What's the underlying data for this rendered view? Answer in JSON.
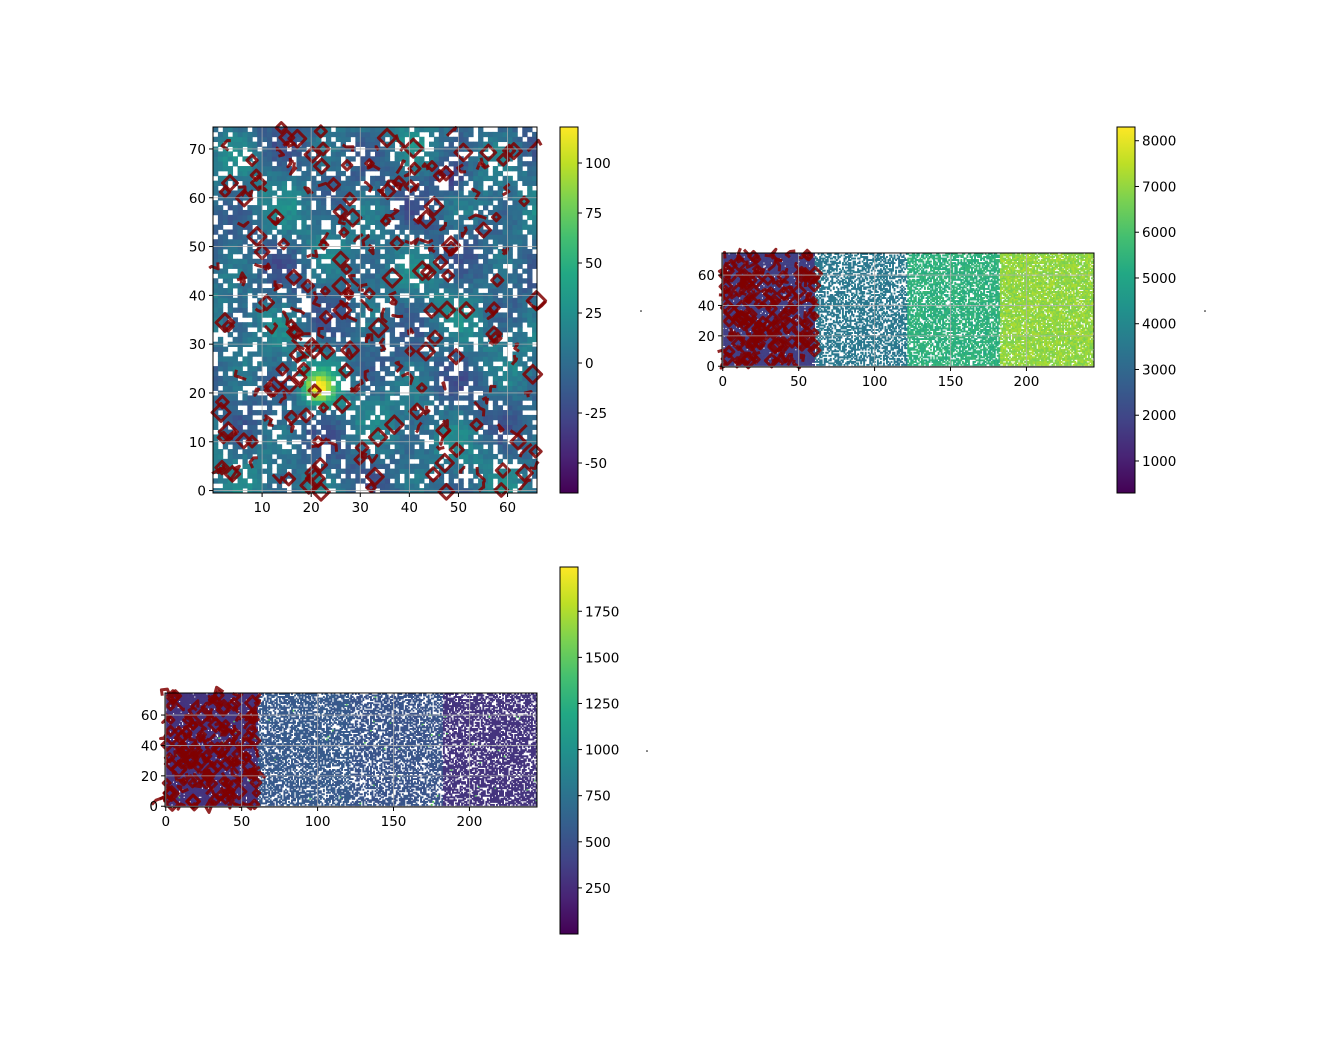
{
  "chart_data": [
    {
      "type": "heatmap",
      "title": "",
      "xlabel": "",
      "ylabel": "",
      "x_ticks": [
        10,
        20,
        30,
        40,
        50,
        60
      ],
      "y_ticks": [
        0,
        10,
        20,
        30,
        40,
        50,
        60,
        70
      ],
      "xlim": [
        0,
        66
      ],
      "ylim": [
        -0.5,
        74.5
      ],
      "grid": true,
      "colormap": "viridis",
      "colorbar": {
        "vmin": -65,
        "vmax": 118,
        "ticks": [
          -50,
          -25,
          0,
          25,
          50,
          75,
          100
        ]
      },
      "masked_fraction": 0.22,
      "contour_color": "#800000",
      "hotspot": {
        "x": 21,
        "y": 21,
        "value": 118
      },
      "lowspot": {
        "x": 48,
        "y": 64,
        "value": -40
      }
    },
    {
      "type": "heatmap",
      "title": "",
      "xlabel": "",
      "ylabel": "",
      "x_ticks": [
        0,
        50,
        100,
        150,
        200
      ],
      "y_ticks": [
        0,
        20,
        40,
        60
      ],
      "xlim": [
        -0.5,
        244.5
      ],
      "ylim": [
        -0.5,
        74.5
      ],
      "grid": true,
      "colormap": "viridis",
      "colorbar": {
        "vmin": 300,
        "vmax": 8300,
        "ticks": [
          1000,
          2000,
          3000,
          4000,
          5000,
          6000,
          7000,
          8000
        ]
      },
      "bands": [
        {
          "x_start": 0,
          "x_end": 61,
          "value": 1800,
          "masked_fraction": 0.05,
          "contoured": true
        },
        {
          "x_start": 61,
          "x_end": 122,
          "value": 3500,
          "masked_fraction": 0.45,
          "contoured": false
        },
        {
          "x_start": 122,
          "x_end": 183,
          "value": 5400,
          "masked_fraction": 0.3,
          "contoured": false
        },
        {
          "x_start": 183,
          "x_end": 245,
          "value": 7000,
          "masked_fraction": 0.15,
          "contoured": false
        }
      ],
      "contour_color": "#800000"
    },
    {
      "type": "heatmap",
      "title": "",
      "xlabel": "",
      "ylabel": "",
      "x_ticks": [
        0,
        50,
        100,
        150,
        200
      ],
      "y_ticks": [
        0,
        20,
        40,
        60
      ],
      "xlim": [
        -0.5,
        244.5
      ],
      "ylim": [
        -0.5,
        74.5
      ],
      "grid": true,
      "colormap": "viridis",
      "colorbar": {
        "vmin": 0,
        "vmax": 1990,
        "ticks": [
          250,
          500,
          750,
          1000,
          1250,
          1500,
          1750
        ]
      },
      "bands": [
        {
          "x_start": 0,
          "x_end": 61,
          "value": 300,
          "masked_fraction": 0.05,
          "contoured": true
        },
        {
          "x_start": 61,
          "x_end": 122,
          "value": 560,
          "masked_fraction": 0.35,
          "contoured": false
        },
        {
          "x_start": 122,
          "x_end": 183,
          "value": 520,
          "masked_fraction": 0.4,
          "contoured": false
        },
        {
          "x_start": 183,
          "x_end": 245,
          "value": 300,
          "masked_fraction": 0.35,
          "contoured": false
        }
      ],
      "contour_color": "#800000"
    }
  ]
}
